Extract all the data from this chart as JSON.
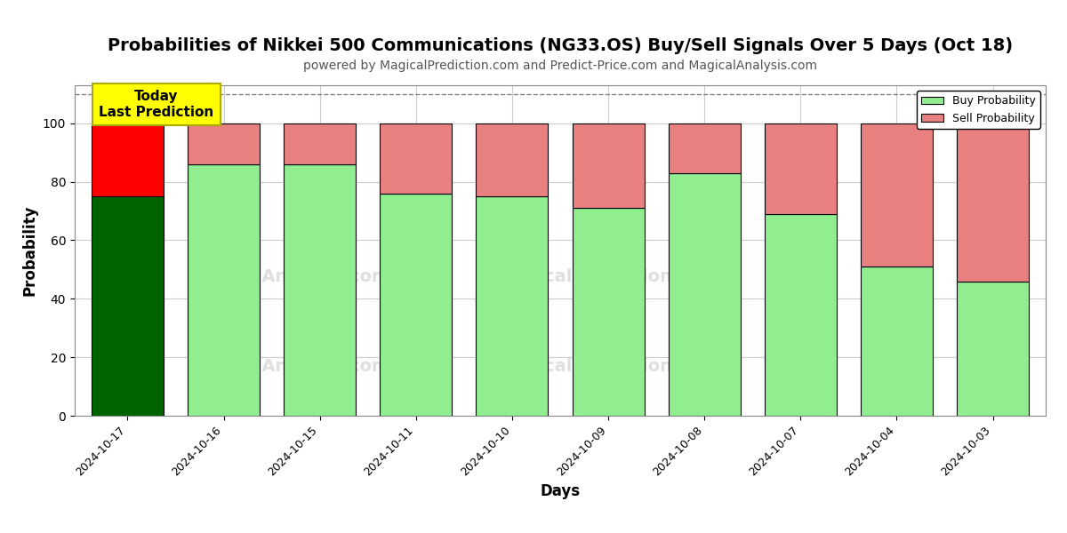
{
  "title": "Probabilities of Nikkei 500 Communications (NG33.OS) Buy/Sell Signals Over 5 Days (Oct 18)",
  "subtitle": "powered by MagicalPrediction.com and Predict-Price.com and MagicalAnalysis.com",
  "xlabel": "Days",
  "ylabel": "Probability",
  "categories": [
    "2024-10-17",
    "2024-10-16",
    "2024-10-15",
    "2024-10-11",
    "2024-10-10",
    "2024-10-09",
    "2024-10-08",
    "2024-10-07",
    "2024-10-04",
    "2024-10-03"
  ],
  "buy_values": [
    75,
    86,
    86,
    76,
    75,
    71,
    83,
    69,
    51,
    46
  ],
  "sell_values": [
    25,
    14,
    14,
    24,
    25,
    29,
    17,
    31,
    49,
    54
  ],
  "today_bar_buy_color": "#006400",
  "today_bar_sell_color": "#FF0000",
  "other_bar_buy_color": "#90EE90",
  "other_bar_sell_color": "#E88080",
  "bar_edge_color": "#000000",
  "annotation_text": "Today\nLast Prediction",
  "annotation_bg_color": "#FFFF00",
  "annotation_border_color": "#AAAA00",
  "dashed_line_y": 110,
  "ylim": [
    0,
    113
  ],
  "yticks": [
    0,
    20,
    40,
    60,
    80,
    100
  ],
  "grid_color": "#cccccc",
  "legend_buy_color": "#90EE90",
  "legend_sell_color": "#E88080",
  "background_color": "#ffffff",
  "title_fontsize": 14,
  "subtitle_fontsize": 10,
  "axis_label_fontsize": 12
}
